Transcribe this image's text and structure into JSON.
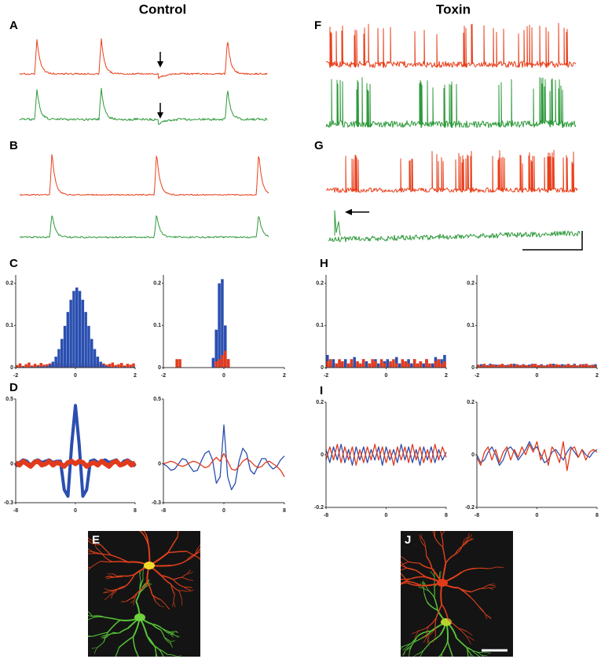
{
  "headers": {
    "left": "Control",
    "right": "Toxin"
  },
  "trace_panels": [
    {
      "label": "A"
    },
    {
      "label": "B"
    },
    {
      "label": "F"
    },
    {
      "label": "G"
    }
  ],
  "image_panels": [
    {
      "label": "E"
    },
    {
      "label": "J"
    }
  ],
  "chart_data": [
    {
      "type": "histogram",
      "panel": "C",
      "bins": [
        -2,
        -1.9,
        -1.8,
        -1.7,
        -1.6,
        -1.5,
        -1.4,
        -1.3,
        -1.2,
        -1.1,
        -1,
        -0.9,
        -0.8,
        -0.7,
        -0.6,
        -0.5,
        -0.4,
        -0.3,
        -0.2,
        -0.1,
        0,
        0.1,
        0.2,
        0.3,
        0.4,
        0.5,
        0.6,
        0.7,
        0.8,
        0.9,
        1,
        1.1,
        1.2,
        1.3,
        1.4,
        1.5,
        1.6,
        1.7,
        1.8,
        1.9,
        2
      ],
      "series": [
        {
          "color": "#e23a1c",
          "values": [
            0.006,
            0.01,
            0.004,
            0.008,
            0.012,
            0.005,
            0.009,
            0.006,
            0.011,
            0.007,
            0.008,
            0.01,
            0.006,
            0.012,
            0.009,
            0.007,
            0.01,
            0.006,
            0.008,
            0.011,
            0.009,
            0.007,
            0.01,
            0.012,
            0.006,
            0.009,
            0.008,
            0.011,
            0.005,
            0.01,
            0.007,
            0.009,
            0.012,
            0.006,
            0.008,
            0.011,
            0.005,
            0.009,
            0.007,
            0.01
          ]
        },
        {
          "color": "#2a4fb0",
          "values": [
            0.001,
            0,
            0.002,
            0,
            0.001,
            0.002,
            0.001,
            0.003,
            0.002,
            0.003,
            0.003,
            0.007,
            0.014,
            0.026,
            0.044,
            0.068,
            0.099,
            0.132,
            0.161,
            0.182,
            0.19,
            0.182,
            0.161,
            0.132,
            0.099,
            0.068,
            0.044,
            0.026,
            0.014,
            0.007,
            0.003,
            0.002,
            0.001,
            0.002,
            0,
            0.001,
            0.002,
            0,
            0.001,
            0.002
          ]
        }
      ],
      "xlim": [
        -2,
        2
      ],
      "ylim": [
        0,
        0.22
      ],
      "xticks": [
        -2,
        0,
        2
      ],
      "yticks": [
        0,
        0.1,
        0.2
      ]
    },
    {
      "type": "histogram",
      "bins": [
        -2,
        -1.9,
        -1.8,
        -1.7,
        -1.6,
        -1.5,
        -1.4,
        -1.3,
        -1.2,
        -1.1,
        -1,
        -0.9,
        -0.8,
        -0.7,
        -0.6,
        -0.5,
        -0.4,
        -0.3,
        -0.2,
        -0.1,
        0,
        0.1,
        0.2,
        0.3,
        0.4,
        0.5,
        0.6,
        0.7,
        0.8,
        0.9,
        1,
        1.1,
        1.2,
        1.3,
        1.4,
        1.5,
        1.6,
        1.7,
        1.8,
        1.9,
        2
      ],
      "series": [
        {
          "color": "#2a4fb0",
          "values": [
            0,
            0,
            0,
            0,
            0,
            0,
            0,
            0,
            0,
            0,
            0,
            0,
            0,
            0,
            0,
            0,
            0.023,
            0.09,
            0.2,
            0.21,
            0.1,
            0.02,
            0,
            0,
            0,
            0,
            0,
            0,
            0,
            0,
            0,
            0,
            0,
            0,
            0,
            0,
            0,
            0,
            0,
            0
          ]
        },
        {
          "color": "#e23a1c",
          "values": [
            0,
            0,
            0,
            0,
            0.02,
            0.02,
            0,
            0,
            0,
            0,
            0,
            0,
            0,
            0,
            0,
            0,
            0,
            0.015,
            0.02,
            0.03,
            0.04,
            0.02,
            0,
            0,
            0,
            0,
            0,
            0,
            0,
            0,
            0,
            0,
            0,
            0,
            0,
            0,
            0,
            0,
            0,
            0
          ]
        }
      ],
      "xlim": [
        -2,
        2
      ],
      "ylim": [
        0,
        0.22
      ],
      "xticks": [
        -2,
        0,
        2
      ],
      "yticks": [
        0,
        0.1,
        0.2
      ]
    },
    {
      "type": "histogram",
      "panel": "H",
      "bins": [
        -2,
        -1.9,
        -1.8,
        -1.7,
        -1.6,
        -1.5,
        -1.4,
        -1.3,
        -1.2,
        -1.1,
        -1,
        -0.9,
        -0.8,
        -0.7,
        -0.6,
        -0.5,
        -0.4,
        -0.3,
        -0.2,
        -0.1,
        0,
        0.1,
        0.2,
        0.3,
        0.4,
        0.5,
        0.6,
        0.7,
        0.8,
        0.9,
        1,
        1.1,
        1.2,
        1.3,
        1.4,
        1.5,
        1.6,
        1.7,
        1.8,
        1.9,
        2
      ],
      "series": [
        {
          "color": "#2a4fb0",
          "values": [
            0.03,
            0.01,
            0.02,
            0,
            0.015,
            0.01,
            0.02,
            0,
            0.01,
            0.025,
            0.01,
            0,
            0.02,
            0.015,
            0,
            0.01,
            0.02,
            0.01,
            0,
            0.015,
            0.02,
            0.01,
            0,
            0.025,
            0.01,
            0.015,
            0,
            0.02,
            0.01,
            0.02,
            0,
            0.015,
            0.01,
            0.02,
            0,
            0.01,
            0.025,
            0.01,
            0.02,
            0.03
          ]
        },
        {
          "color": "#e23a1c",
          "values": [
            0.015,
            0.02,
            0,
            0.01,
            0.02,
            0.015,
            0,
            0.01,
            0.02,
            0,
            0.015,
            0.01,
            0.02,
            0,
            0.01,
            0.02,
            0.015,
            0,
            0.02,
            0.01,
            0,
            0.015,
            0.02,
            0.01,
            0,
            0.02,
            0.015,
            0.01,
            0,
            0.02,
            0.01,
            0.015,
            0,
            0.02,
            0.01,
            0,
            0.015,
            0.02,
            0.01,
            0.015
          ]
        }
      ],
      "xlim": [
        -2,
        2
      ],
      "ylim": [
        0,
        0.22
      ],
      "xticks": [
        -2,
        0,
        2
      ],
      "yticks": [
        0,
        0.1,
        0.2
      ]
    },
    {
      "type": "histogram",
      "bins": [
        -2,
        -1.9,
        -1.8,
        -1.7,
        -1.6,
        -1.5,
        -1.4,
        -1.3,
        -1.2,
        -1.1,
        -1,
        -0.9,
        -0.8,
        -0.7,
        -0.6,
        -0.5,
        -0.4,
        -0.3,
        -0.2,
        -0.1,
        0,
        0.1,
        0.2,
        0.3,
        0.4,
        0.5,
        0.6,
        0.7,
        0.8,
        0.9,
        1,
        1.1,
        1.2,
        1.3,
        1.4,
        1.5,
        1.6,
        1.7,
        1.8,
        1.9,
        2
      ],
      "series": [
        {
          "color": "#2a4fb0",
          "values": [
            0.005,
            0.008,
            0.004,
            0.006,
            0.009,
            0.005,
            0.007,
            0.004,
            0.008,
            0.006,
            0.007,
            0.005,
            0.009,
            0.004,
            0.006,
            0.008,
            0.005,
            0.007,
            0.009,
            0.004,
            0.006,
            0.008,
            0.005,
            0.007,
            0.004,
            0.009,
            0.006,
            0.005,
            0.008,
            0.007,
            0.004,
            0.006,
            0.009,
            0.005,
            0.007,
            0.008,
            0.004,
            0.006,
            0.005,
            0.008
          ]
        },
        {
          "color": "#e23a1c",
          "values": [
            0.007,
            0.004,
            0.009,
            0.005,
            0.006,
            0.008,
            0.004,
            0.007,
            0.009,
            0.005,
            0.006,
            0.009,
            0.004,
            0.008,
            0.005,
            0.007,
            0.006,
            0.004,
            0.008,
            0.009,
            0.005,
            0.007,
            0.004,
            0.006,
            0.009,
            0.005,
            0.008,
            0.007,
            0.004,
            0.006,
            0.009,
            0.005,
            0.007,
            0.004,
            0.008,
            0.006,
            0.009,
            0.005,
            0.007,
            0.004
          ]
        }
      ],
      "xlim": [
        -2,
        2
      ],
      "ylim": [
        0,
        0.22
      ],
      "xticks": [
        -2,
        0,
        2
      ],
      "yticks": [
        0,
        0.1,
        0.2
      ]
    },
    {
      "type": "line",
      "panel": "D",
      "x": [
        -8,
        -7.5,
        -7,
        -6.5,
        -6,
        -5.5,
        -5,
        -4.5,
        -4,
        -3.5,
        -3,
        -2.5,
        -2,
        -1.5,
        -1,
        -0.5,
        0,
        0.5,
        1,
        1.5,
        2,
        2.5,
        3,
        3.5,
        4,
        4.5,
        5,
        5.5,
        6,
        6.5,
        7,
        7.5,
        8
      ],
      "series": [
        {
          "color": "#2a4fb0",
          "width": 4,
          "values": [
            -0.02,
            0.01,
            0.03,
            0.02,
            -0.01,
            0.02,
            0.03,
            0.01,
            0.02,
            0.03,
            0.01,
            0.02,
            0.02,
            -0.2,
            -0.25,
            0.15,
            0.45,
            0.15,
            -0.25,
            -0.2,
            0.02,
            0.03,
            0.01,
            0.02,
            0.03,
            0.01,
            0.02,
            0.03,
            -0.01,
            0.02,
            0.03,
            0.01,
            -0.02
          ]
        },
        {
          "color": "#e23a1c",
          "width": 6,
          "values": [
            0.01,
            -0.01,
            0.02,
            0,
            -0.02,
            0.01,
            0.02,
            -0.01,
            0,
            0.02,
            -0.01,
            0.01,
            0,
            -0.02,
            0.01,
            0.02,
            0,
            0.02,
            0.01,
            -0.02,
            0,
            0.01,
            -0.01,
            0.02,
            0,
            -0.02,
            0.01,
            0.02,
            -0.01,
            0,
            0.02,
            -0.01,
            0.01
          ]
        }
      ],
      "xlim": [
        -8,
        8
      ],
      "ylim": [
        -0.3,
        0.5
      ],
      "xticks": [
        -8,
        0,
        8
      ],
      "yticks": [
        -0.3,
        0,
        0.5
      ]
    },
    {
      "type": "line",
      "x": [
        -8,
        -7.5,
        -7,
        -6.5,
        -6,
        -5.5,
        -5,
        -4.5,
        -4,
        -3.5,
        -3,
        -2.5,
        -2,
        -1.5,
        -1,
        -0.5,
        0,
        0.5,
        1,
        1.5,
        2,
        2.5,
        3,
        3.5,
        4,
        4.5,
        5,
        5.5,
        6,
        6.5,
        7,
        7.5,
        8
      ],
      "series": [
        {
          "color": "#2a4fb0",
          "width": 1.3,
          "values": [
            0,
            -0.02,
            -0.05,
            -0.04,
            0,
            0.04,
            0.03,
            -0.02,
            -0.06,
            -0.05,
            0.02,
            0.08,
            0.1,
            0.03,
            -0.15,
            -0.1,
            0.3,
            -0.1,
            -0.2,
            -0.15,
            0.02,
            0.12,
            0.08,
            -0.05,
            -0.08,
            -0.02,
            0.04,
            0.04,
            -0.01,
            -0.04,
            -0.02,
            0.03,
            0.06
          ]
        },
        {
          "color": "#e23a1c",
          "width": 1.3,
          "values": [
            0,
            0.01,
            0.02,
            0.01,
            -0.01,
            -0.02,
            -0.01,
            0.01,
            0.02,
            0.01,
            -0.01,
            -0.03,
            -0.02,
            0.02,
            0.05,
            0.02,
            0.08,
            0.02,
            -0.04,
            -0.05,
            -0.02,
            0.02,
            0.04,
            0.02,
            -0.01,
            -0.03,
            -0.02,
            0.01,
            0.02,
            0,
            -0.02,
            -0.05,
            -0.1
          ]
        }
      ],
      "xlim": [
        -8,
        8
      ],
      "ylim": [
        -0.3,
        0.5
      ],
      "xticks": [
        -8,
        0,
        8
      ],
      "yticks": [
        -0.3,
        0,
        0.5
      ]
    },
    {
      "type": "line",
      "panel": "I",
      "x": [
        -8,
        -7.5,
        -7,
        -6.5,
        -6,
        -5.5,
        -5,
        -4.5,
        -4,
        -3.5,
        -3,
        -2.5,
        -2,
        -1.5,
        -1,
        -0.5,
        0,
        0.5,
        1,
        1.5,
        2,
        2.5,
        3,
        3.5,
        4,
        4.5,
        5,
        5.5,
        6,
        6.5,
        7,
        7.5,
        8
      ],
      "series": [
        {
          "color": "#2a4fb0",
          "width": 1.3,
          "values": [
            0.02,
            -0.03,
            0.03,
            -0.02,
            0.04,
            -0.03,
            0.02,
            -0.04,
            0.03,
            -0.02,
            0.03,
            -0.03,
            0.02,
            -0.02,
            0.03,
            -0.04,
            0.03,
            -0.02,
            0.02,
            -0.03,
            0.04,
            -0.02,
            0.03,
            -0.03,
            0.02,
            -0.04,
            0.03,
            -0.02,
            0.03,
            -0.03,
            0.02,
            -0.02,
            0.01
          ]
        },
        {
          "color": "#e23a1c",
          "width": 1.3,
          "values": [
            -0.02,
            0.03,
            -0.02,
            0.04,
            -0.03,
            0.03,
            -0.02,
            0.03,
            -0.04,
            0.02,
            -0.03,
            0.03,
            -0.02,
            0.04,
            -0.02,
            0.03,
            -0.03,
            0.02,
            -0.04,
            0.03,
            -0.02,
            0.03,
            -0.03,
            0.04,
            -0.02,
            0.03,
            -0.03,
            0.02,
            -0.03,
            0.04,
            -0.02,
            0.03,
            -0.01
          ]
        }
      ],
      "xlim": [
        -8,
        8
      ],
      "ylim": [
        -0.2,
        0.2
      ],
      "xticks": [
        -8,
        0,
        8
      ],
      "yticks": [
        -0.2,
        0,
        0.2
      ]
    },
    {
      "type": "line",
      "x": [
        -8,
        -7.5,
        -7,
        -6.5,
        -6,
        -5.5,
        -5,
        -4.5,
        -4,
        -3.5,
        -3,
        -2.5,
        -2,
        -1.5,
        -1,
        -0.5,
        0,
        0.5,
        1,
        1.5,
        2,
        2.5,
        3,
        3.5,
        4,
        4.5,
        5,
        5.5,
        6,
        6.5,
        7,
        7.5,
        8
      ],
      "series": [
        {
          "color": "#2a4fb0",
          "width": 1.3,
          "values": [
            0,
            -0.03,
            -0.02,
            0.01,
            0.03,
            0,
            -0.04,
            -0.02,
            0.02,
            0.03,
            0.01,
            -0.02,
            0,
            0.02,
            0.05,
            0.02,
            0.03,
            0,
            -0.03,
            -0.02,
            0.01,
            0.02,
            0,
            -0.02,
            0.01,
            0.03,
            0.01,
            -0.01,
            0.02,
            0,
            -0.01,
            0.01,
            0.02
          ]
        },
        {
          "color": "#e23a1c",
          "width": 1.3,
          "values": [
            -0.01,
            -0.04,
            0.01,
            0.03,
            -0.02,
            0.02,
            -0.03,
            0.01,
            0.03,
            -0.02,
            0.02,
            -0.01,
            0.03,
            0,
            0.04,
            0.01,
            0.05,
            -0.02,
            0.02,
            -0.04,
            0.03,
            0.01,
            -0.03,
            0.05,
            -0.06,
            0.02,
            0.03,
            -0.01,
            0.02,
            -0.02,
            0.01,
            0.02,
            0.01
          ]
        }
      ],
      "xlim": [
        -8,
        8
      ],
      "ylim": [
        -0.2,
        0.2
      ],
      "xticks": [
        -8,
        0,
        8
      ],
      "yticks": [
        -0.2,
        0,
        0.2
      ]
    }
  ]
}
